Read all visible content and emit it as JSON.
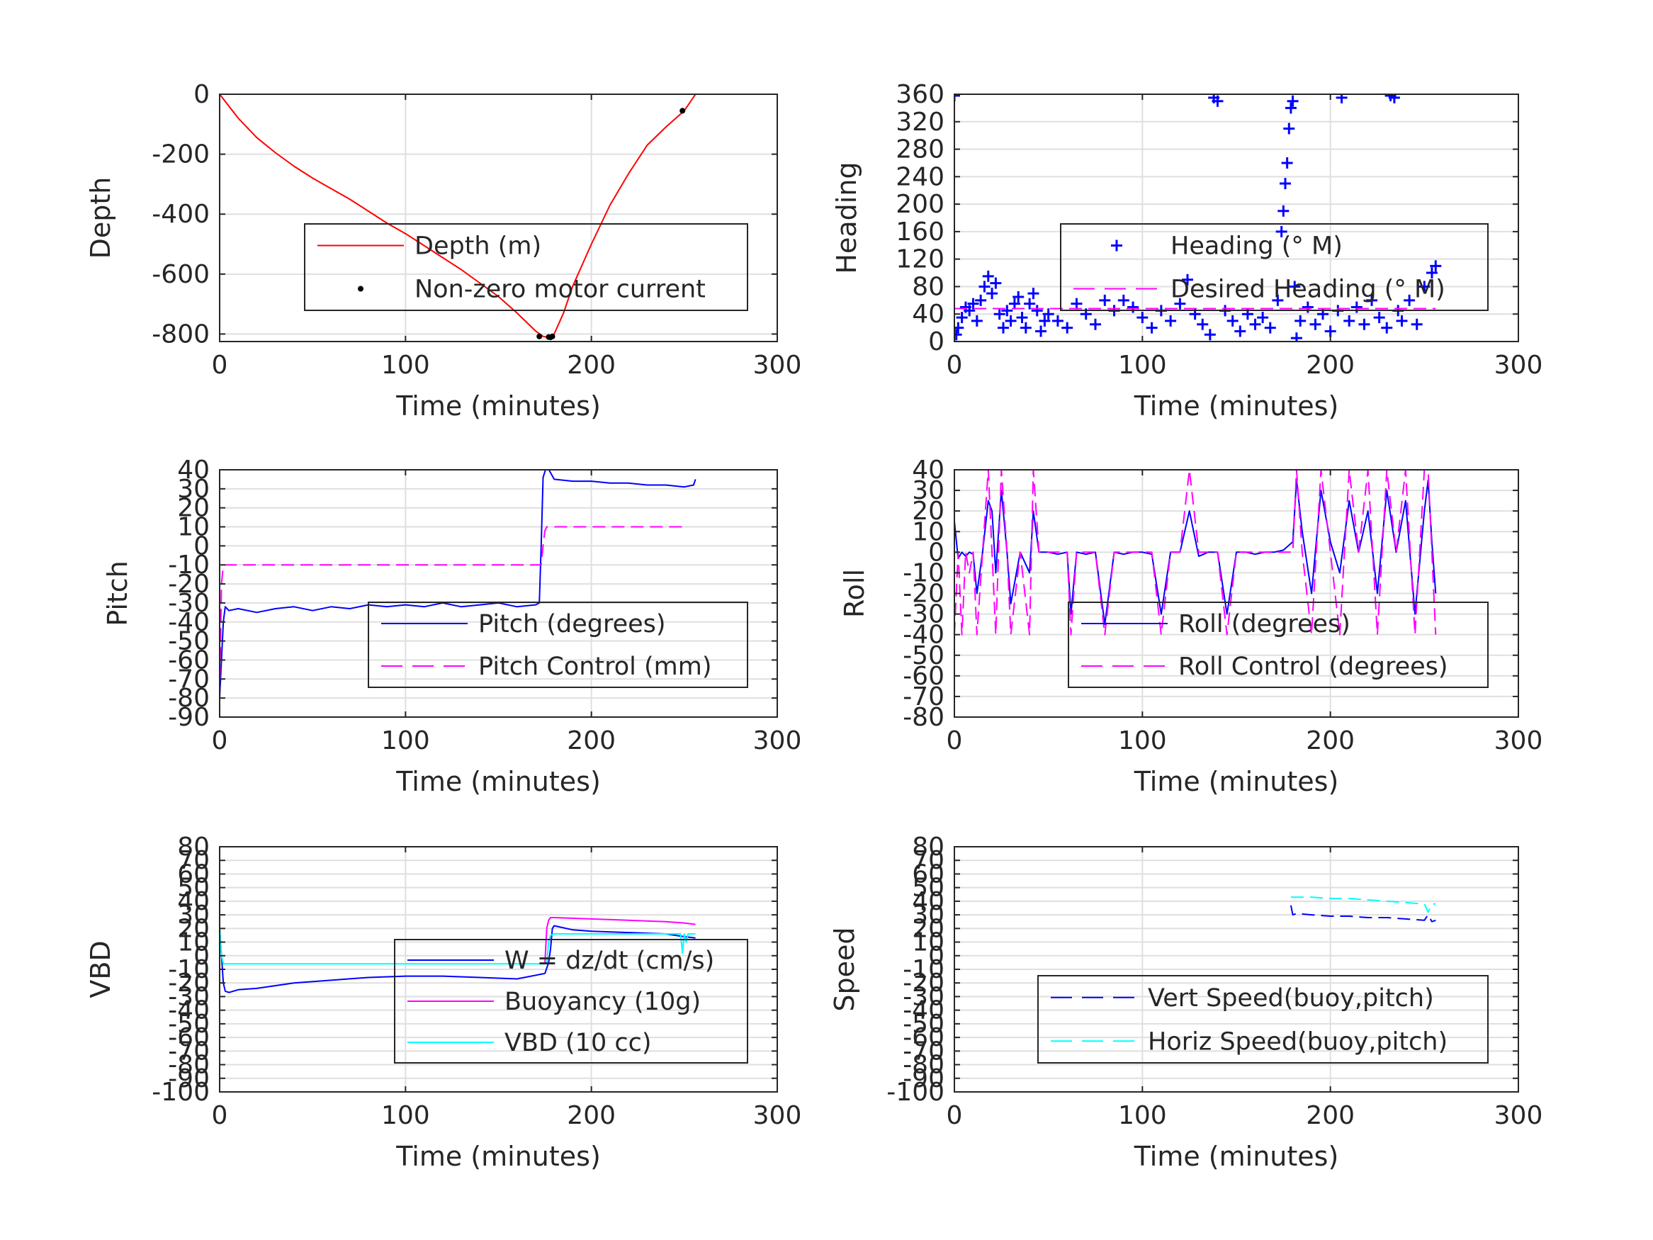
{
  "chart_data": [
    {
      "type": "line",
      "ylabel": "Depth",
      "xlabel": "Time (minutes)",
      "xlim": [
        0,
        300
      ],
      "ylim": [
        -825,
        0
      ],
      "xticks": [
        0,
        100,
        200,
        300
      ],
      "yticks": [
        -800,
        -600,
        -400,
        -200,
        0
      ],
      "grid": true,
      "legend_position": "center-right",
      "series": [
        {
          "name": "Depth (m)",
          "color": "#ff0000",
          "style": "solid",
          "x": [
            0,
            5,
            10,
            20,
            30,
            40,
            50,
            60,
            70,
            80,
            90,
            100,
            110,
            120,
            130,
            140,
            150,
            160,
            165,
            170,
            174,
            176,
            178,
            180,
            185,
            190,
            200,
            210,
            220,
            230,
            240,
            250,
            256
          ],
          "y": [
            0,
            -40,
            -80,
            -145,
            -195,
            -240,
            -280,
            -315,
            -350,
            -390,
            -430,
            -465,
            -505,
            -545,
            -585,
            -630,
            -675,
            -730,
            -760,
            -790,
            -808,
            -810,
            -812,
            -800,
            -730,
            -640,
            -500,
            -370,
            -265,
            -170,
            -110,
            -55,
            0
          ]
        },
        {
          "name": "Non-zero motor current",
          "color": "#000000",
          "style": "marker",
          "x": [
            172,
            177,
            178,
            179,
            249
          ],
          "y": [
            -808,
            -810,
            -811,
            -808,
            -55
          ]
        }
      ]
    },
    {
      "type": "scatter",
      "ylabel": "Heading",
      "xlabel": "Time (minutes)",
      "xlim": [
        0,
        300
      ],
      "ylim": [
        0,
        360
      ],
      "xticks": [
        0,
        100,
        200,
        300
      ],
      "yticks": [
        0,
        40,
        80,
        120,
        160,
        200,
        240,
        280,
        320,
        360
      ],
      "grid": true,
      "legend_position": "center-right",
      "series": [
        {
          "name": "Heading (° M)",
          "color": "#0000ff",
          "style": "plus",
          "x": [
            0,
            1,
            2,
            4,
            6,
            8,
            10,
            12,
            14,
            16,
            18,
            20,
            22,
            24,
            26,
            28,
            30,
            32,
            34,
            36,
            38,
            40,
            42,
            44,
            46,
            48,
            50,
            55,
            60,
            65,
            70,
            75,
            80,
            85,
            90,
            95,
            100,
            105,
            110,
            115,
            120,
            124,
            128,
            132,
            136,
            138,
            140,
            144,
            148,
            152,
            156,
            160,
            164,
            168,
            172,
            174,
            175,
            176,
            177,
            178,
            179,
            180,
            181,
            182,
            184,
            188,
            192,
            196,
            200,
            204,
            206,
            210,
            214,
            218,
            222,
            226,
            230,
            232,
            234,
            236,
            238,
            242,
            246,
            250,
            254,
            256
          ],
          "y": [
            358,
            10,
            20,
            35,
            50,
            45,
            55,
            30,
            60,
            80,
            95,
            70,
            85,
            40,
            20,
            45,
            30,
            55,
            65,
            35,
            20,
            55,
            70,
            45,
            15,
            30,
            40,
            30,
            20,
            55,
            40,
            25,
            60,
            45,
            60,
            50,
            35,
            20,
            45,
            30,
            55,
            90,
            40,
            25,
            10,
            355,
            350,
            45,
            30,
            15,
            40,
            25,
            35,
            20,
            60,
            160,
            190,
            230,
            260,
            310,
            340,
            350,
            80,
            5,
            30,
            50,
            25,
            40,
            15,
            45,
            355,
            30,
            50,
            25,
            60,
            35,
            20,
            358,
            355,
            45,
            30,
            60,
            25,
            80,
            100,
            110
          ]
        },
        {
          "name": "Desired Heading (° M)",
          "color": "#ff00ff",
          "style": "dashed",
          "x": [
            0,
            256
          ],
          "y": [
            48,
            48
          ]
        }
      ]
    },
    {
      "type": "line",
      "ylabel": "Pitch",
      "xlabel": "Time (minutes)",
      "xlim": [
        0,
        300
      ],
      "ylim": [
        -90,
        40
      ],
      "xticks": [
        0,
        100,
        200,
        300
      ],
      "yticks": [
        -90,
        -80,
        -70,
        -60,
        -50,
        -40,
        -30,
        -20,
        -10,
        0,
        10,
        20,
        30,
        40
      ],
      "grid": true,
      "legend_position": "center-right",
      "series": [
        {
          "name": "Pitch (degrees)",
          "color": "#0000ff",
          "style": "solid",
          "x": [
            0,
            1,
            2,
            3,
            5,
            10,
            20,
            30,
            40,
            50,
            60,
            70,
            80,
            90,
            100,
            110,
            120,
            130,
            140,
            150,
            160,
            170,
            172,
            173,
            174,
            176,
            180,
            190,
            200,
            210,
            220,
            230,
            240,
            250,
            255,
            256
          ],
          "y": [
            -80,
            -60,
            -40,
            -32,
            -34,
            -33,
            -35,
            -33,
            -32,
            -34,
            -32,
            -33,
            -31,
            -32,
            -31,
            -32,
            -30,
            -32,
            -31,
            -30,
            -32,
            -31,
            -30,
            0,
            36,
            42,
            35,
            34,
            34,
            33,
            33,
            32,
            32,
            31,
            32,
            35
          ]
        },
        {
          "name": "Pitch Control (mm)",
          "color": "#ff00ff",
          "style": "dashed",
          "x": [
            0,
            1,
            2,
            173,
            174,
            175,
            176,
            250
          ],
          "y": [
            -80,
            -20,
            -10,
            -10,
            0,
            8,
            10,
            10
          ]
        }
      ]
    },
    {
      "type": "line",
      "ylabel": "Roll",
      "xlabel": "Time (minutes)",
      "xlim": [
        0,
        300
      ],
      "ylim": [
        -80,
        40
      ],
      "xticks": [
        0,
        100,
        200,
        300
      ],
      "yticks": [
        -80,
        -70,
        -60,
        -50,
        -40,
        -30,
        -20,
        -10,
        0,
        10,
        20,
        30,
        40
      ],
      "grid": true,
      "legend_position": "center-right",
      "series": [
        {
          "name": "Roll (degrees)",
          "color": "#0000ff",
          "style": "solid",
          "x": [
            0,
            2,
            4,
            6,
            8,
            10,
            12,
            15,
            18,
            20,
            22,
            25,
            28,
            30,
            35,
            40,
            42,
            45,
            50,
            55,
            60,
            62,
            65,
            70,
            75,
            80,
            85,
            90,
            95,
            100,
            105,
            110,
            115,
            120,
            125,
            130,
            135,
            140,
            145,
            150,
            155,
            160,
            165,
            170,
            175,
            180,
            182,
            185,
            190,
            195,
            200,
            205,
            210,
            215,
            220,
            225,
            230,
            235,
            240,
            245,
            250,
            252,
            254,
            256
          ],
          "y": [
            15,
            -3,
            0,
            -2,
            0,
            -1,
            -20,
            0,
            25,
            20,
            -10,
            30,
            0,
            -25,
            0,
            -10,
            20,
            0,
            0,
            -1,
            0,
            -30,
            0,
            -1,
            0,
            -35,
            0,
            -1,
            0,
            0,
            -1,
            -30,
            0,
            0,
            20,
            -2,
            0,
            0,
            -30,
            0,
            0,
            -1,
            0,
            0,
            1,
            5,
            35,
            10,
            -20,
            30,
            5,
            -10,
            25,
            0,
            20,
            -20,
            30,
            0,
            25,
            -30,
            20,
            35,
            5,
            -20
          ]
        },
        {
          "name": "Roll Control (degrees)",
          "color": "#ff00ff",
          "style": "dashed",
          "x": [
            0,
            2,
            4,
            6,
            8,
            10,
            12,
            15,
            18,
            20,
            22,
            25,
            28,
            30,
            35,
            40,
            42,
            45,
            50,
            55,
            60,
            62,
            65,
            70,
            75,
            80,
            85,
            90,
            95,
            100,
            105,
            110,
            115,
            120,
            125,
            130,
            135,
            140,
            145,
            150,
            155,
            160,
            165,
            170,
            175,
            180,
            182,
            185,
            190,
            195,
            200,
            205,
            210,
            215,
            220,
            225,
            230,
            235,
            240,
            245,
            250,
            252,
            254,
            256
          ],
          "y": [
            -40,
            0,
            -40,
            0,
            -10,
            0,
            -40,
            0,
            40,
            0,
            -40,
            40,
            0,
            -40,
            0,
            -40,
            40,
            0,
            0,
            0,
            0,
            -40,
            0,
            0,
            0,
            -40,
            0,
            0,
            0,
            0,
            0,
            -40,
            0,
            0,
            40,
            0,
            0,
            0,
            -40,
            0,
            0,
            0,
            0,
            0,
            0,
            0,
            40,
            0,
            -40,
            40,
            0,
            -40,
            40,
            0,
            40,
            -40,
            40,
            0,
            40,
            -40,
            40,
            40,
            0,
            -40
          ]
        }
      ]
    },
    {
      "type": "line",
      "ylabel": "VBD",
      "xlabel": "Time (minutes)",
      "xlim": [
        0,
        300
      ],
      "ylim": [
        -100,
        80
      ],
      "xticks": [
        0,
        100,
        200,
        300
      ],
      "yticks": [
        -100,
        -90,
        -80,
        -70,
        -60,
        -50,
        -40,
        -30,
        -20,
        -10,
        0,
        10,
        20,
        30,
        40,
        50,
        60,
        70,
        80
      ],
      "grid": true,
      "legend_position": "center-right",
      "series": [
        {
          "name": "W = dz/dt (cm/s)",
          "color": "#0000ff",
          "style": "solid",
          "x": [
            0,
            1,
            2,
            3,
            5,
            10,
            20,
            40,
            60,
            80,
            100,
            120,
            140,
            160,
            175,
            177,
            178,
            179,
            180,
            190,
            200,
            220,
            240,
            250,
            256
          ],
          "y": [
            20,
            0,
            -20,
            -26,
            -27,
            -25,
            -24,
            -20,
            -18,
            -16,
            -15,
            -15,
            -16,
            -17,
            -13,
            -5,
            5,
            20,
            22,
            19,
            18,
            17,
            16,
            14,
            13
          ]
        },
        {
          "name": "Buoyancy (10g)",
          "color": "#ff00ff",
          "style": "solid",
          "x": [
            175,
            176,
            177,
            178,
            180,
            200,
            220,
            240,
            250,
            256
          ],
          "y": [
            -5,
            20,
            26,
            28,
            28,
            27,
            26,
            25,
            24,
            23
          ]
        },
        {
          "name": "VBD (10 cc)",
          "color": "#00ffff",
          "style": "solid",
          "x": [
            0,
            1,
            2,
            3,
            5,
            100,
            176,
            177,
            178,
            180,
            240,
            248,
            249,
            250,
            251,
            252,
            256
          ],
          "y": [
            20,
            0,
            -6,
            -6,
            -6,
            -6,
            -6,
            10,
            15,
            16,
            16,
            16,
            2,
            16,
            10,
            16,
            16
          ]
        }
      ]
    },
    {
      "type": "line",
      "ylabel": "Speed",
      "xlabel": "Time (minutes)",
      "xlim": [
        0,
        300
      ],
      "ylim": [
        -100,
        80
      ],
      "xticks": [
        0,
        100,
        200,
        300
      ],
      "yticks": [
        -100,
        -90,
        -80,
        -70,
        -60,
        -50,
        -40,
        -30,
        -20,
        -10,
        0,
        10,
        20,
        30,
        40,
        50,
        60,
        70,
        80
      ],
      "grid": true,
      "legend_position": "lower-right",
      "series": [
        {
          "name": "Vert Speed(buoy,pitch)",
          "color": "#0000ff",
          "style": "dashed",
          "x": [
            179,
            180,
            182,
            190,
            200,
            210,
            220,
            230,
            240,
            250,
            252,
            254,
            256
          ],
          "y": [
            37,
            30,
            31,
            30,
            29,
            29,
            28,
            28,
            27,
            26,
            30,
            25,
            26
          ]
        },
        {
          "name": "Horiz Speed(buoy,pitch)",
          "color": "#00ffff",
          "style": "dashed",
          "x": [
            179,
            190,
            200,
            210,
            220,
            230,
            240,
            250,
            252,
            254,
            256
          ],
          "y": [
            43,
            43,
            42,
            42,
            41,
            40,
            39,
            38,
            32,
            38,
            38
          ]
        }
      ]
    }
  ]
}
